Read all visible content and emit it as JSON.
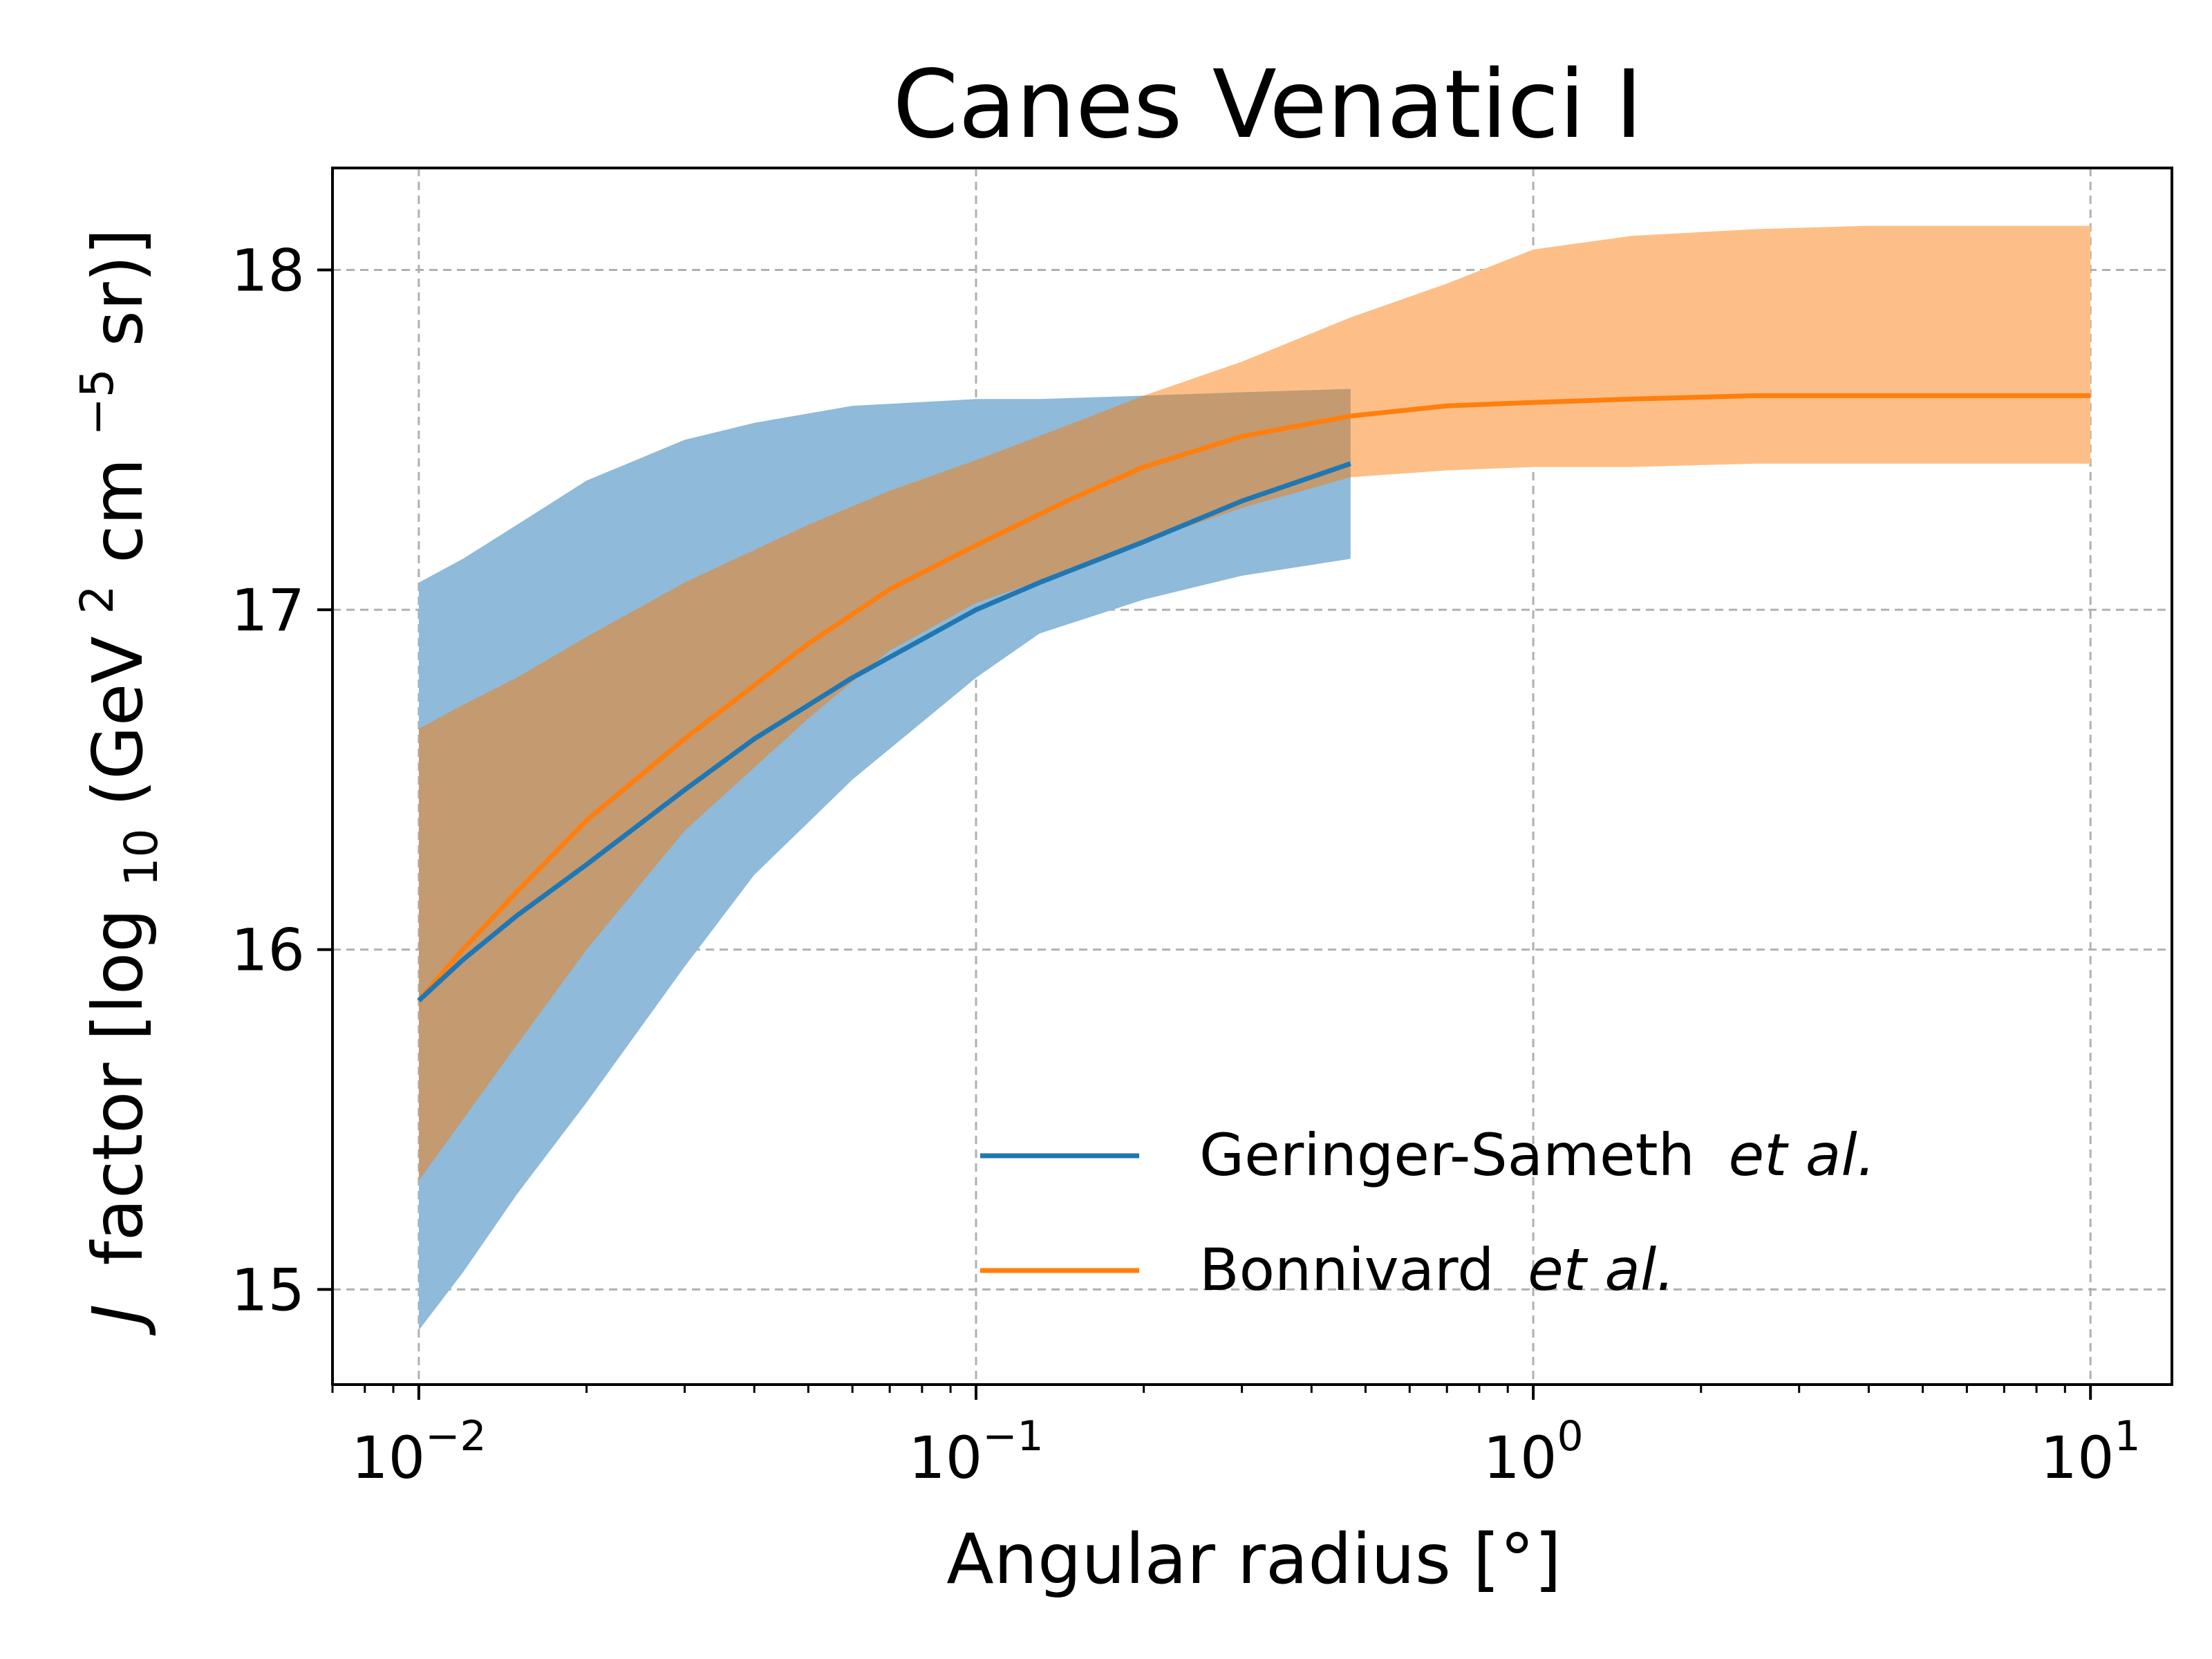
{
  "chart_data": {
    "type": "line",
    "title": "Canes Venatici I",
    "xlabel": "Angular radius [°]",
    "ylabel": "factor [log",
    "ylabel_italic": "J",
    "ylabel_sub": "10",
    "ylabel_units_a": "(GeV",
    "ylabel_sup_a": "2",
    "ylabel_units_b": "cm",
    "ylabel_sup_b": "−5",
    "ylabel_units_c": "sr)]",
    "x_scale": "log",
    "xlim": [
      0.007,
      14
    ],
    "ylim": [
      14.72,
      18.3
    ],
    "grid": true,
    "legend_position": "lower-right",
    "x_ticks": [
      {
        "value": 0.01,
        "base": "10",
        "exp": "−2"
      },
      {
        "value": 0.1,
        "base": "10",
        "exp": "−1"
      },
      {
        "value": 1,
        "base": "10",
        "exp": "0"
      },
      {
        "value": 10,
        "base": "10",
        "exp": "1"
      }
    ],
    "y_ticks": [
      {
        "value": 15,
        "label": "15"
      },
      {
        "value": 16,
        "label": "16"
      },
      {
        "value": 17,
        "label": "17"
      },
      {
        "value": 18,
        "label": "18"
      }
    ],
    "series": [
      {
        "name": "Geringer-Sameth",
        "name_suffix": "et al.",
        "color": "#1f77b4",
        "band_color": "#8fbad9",
        "x": [
          0.01,
          0.012,
          0.015,
          0.02,
          0.03,
          0.04,
          0.06,
          0.1,
          0.13,
          0.2,
          0.3,
          0.47
        ],
        "y": [
          15.85,
          15.97,
          16.1,
          16.25,
          16.47,
          16.62,
          16.8,
          17.0,
          17.08,
          17.2,
          17.32,
          17.43
        ],
        "lower": [
          14.88,
          15.05,
          15.28,
          15.55,
          15.95,
          16.22,
          16.5,
          16.8,
          16.93,
          17.03,
          17.1,
          17.15
        ],
        "upper": [
          17.08,
          17.15,
          17.25,
          17.38,
          17.5,
          17.55,
          17.6,
          17.62,
          17.62,
          17.63,
          17.64,
          17.65
        ]
      },
      {
        "name": "Bonnivard",
        "name_suffix": "et al.",
        "color": "#ff7f0e",
        "band_color": "#fdbf87",
        "x": [
          0.01,
          0.012,
          0.015,
          0.02,
          0.03,
          0.05,
          0.07,
          0.1,
          0.15,
          0.2,
          0.3,
          0.47,
          0.7,
          1.0,
          1.5,
          2.5,
          4,
          10
        ],
        "y": [
          15.85,
          16.0,
          16.17,
          16.38,
          16.62,
          16.9,
          17.06,
          17.19,
          17.33,
          17.42,
          17.51,
          17.57,
          17.6,
          17.61,
          17.62,
          17.63,
          17.63,
          17.63
        ],
        "lower": [
          15.32,
          15.5,
          15.72,
          16.0,
          16.35,
          16.68,
          16.88,
          17.02,
          17.12,
          17.2,
          17.3,
          17.39,
          17.41,
          17.42,
          17.42,
          17.43,
          17.43,
          17.43
        ],
        "upper": [
          16.65,
          16.72,
          16.8,
          16.92,
          17.08,
          17.25,
          17.35,
          17.44,
          17.55,
          17.63,
          17.73,
          17.86,
          17.96,
          18.06,
          18.1,
          18.12,
          18.13,
          18.13
        ],
        "upper_switch_x": 0.47,
        "upper_left": 17.78
      }
    ]
  }
}
